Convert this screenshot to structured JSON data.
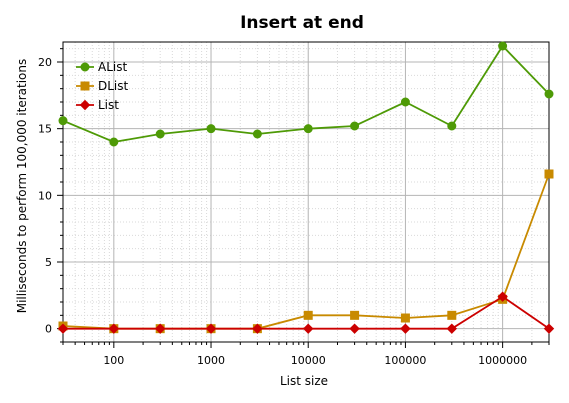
{
  "chart_data": {
    "type": "line",
    "title": "Insert at end",
    "xlabel": "List size",
    "ylabel": "Milliseconds to perform 100,000 iterations",
    "x_scale": "log",
    "xlim": [
      30,
      3000000
    ],
    "ylim": [
      -1,
      21.5
    ],
    "x_ticks": [
      100,
      1000,
      10000,
      100000,
      1000000
    ],
    "x_tick_labels": [
      "100",
      "1000",
      "10000",
      "100000",
      "1000000"
    ],
    "y_ticks": [
      0,
      5,
      10,
      15,
      20
    ],
    "y_tick_labels": [
      "0",
      "5",
      "10",
      "15",
      "20"
    ],
    "grid": true,
    "legend_position": "top-left",
    "x": [
      30,
      100,
      300,
      1000,
      3000,
      10000,
      30000,
      100000,
      300000,
      1000000,
      3000000
    ],
    "series": [
      {
        "name": "AList",
        "color": "#4e9a06",
        "marker": "circle",
        "values": [
          15.6,
          14.0,
          14.6,
          15.0,
          14.6,
          15.0,
          15.2,
          17.0,
          15.2,
          21.2,
          17.6
        ]
      },
      {
        "name": "DList",
        "color": "#c88a00",
        "marker": "square",
        "values": [
          0.2,
          0.0,
          0.0,
          0.0,
          0.0,
          1.0,
          1.0,
          0.8,
          1.0,
          2.2,
          11.6
        ]
      },
      {
        "name": "List",
        "color": "#cc0000",
        "marker": "diamond",
        "values": [
          0.0,
          0.0,
          0.0,
          0.0,
          0.0,
          0.0,
          0.0,
          0.0,
          0.0,
          2.4,
          0.0
        ]
      }
    ]
  }
}
